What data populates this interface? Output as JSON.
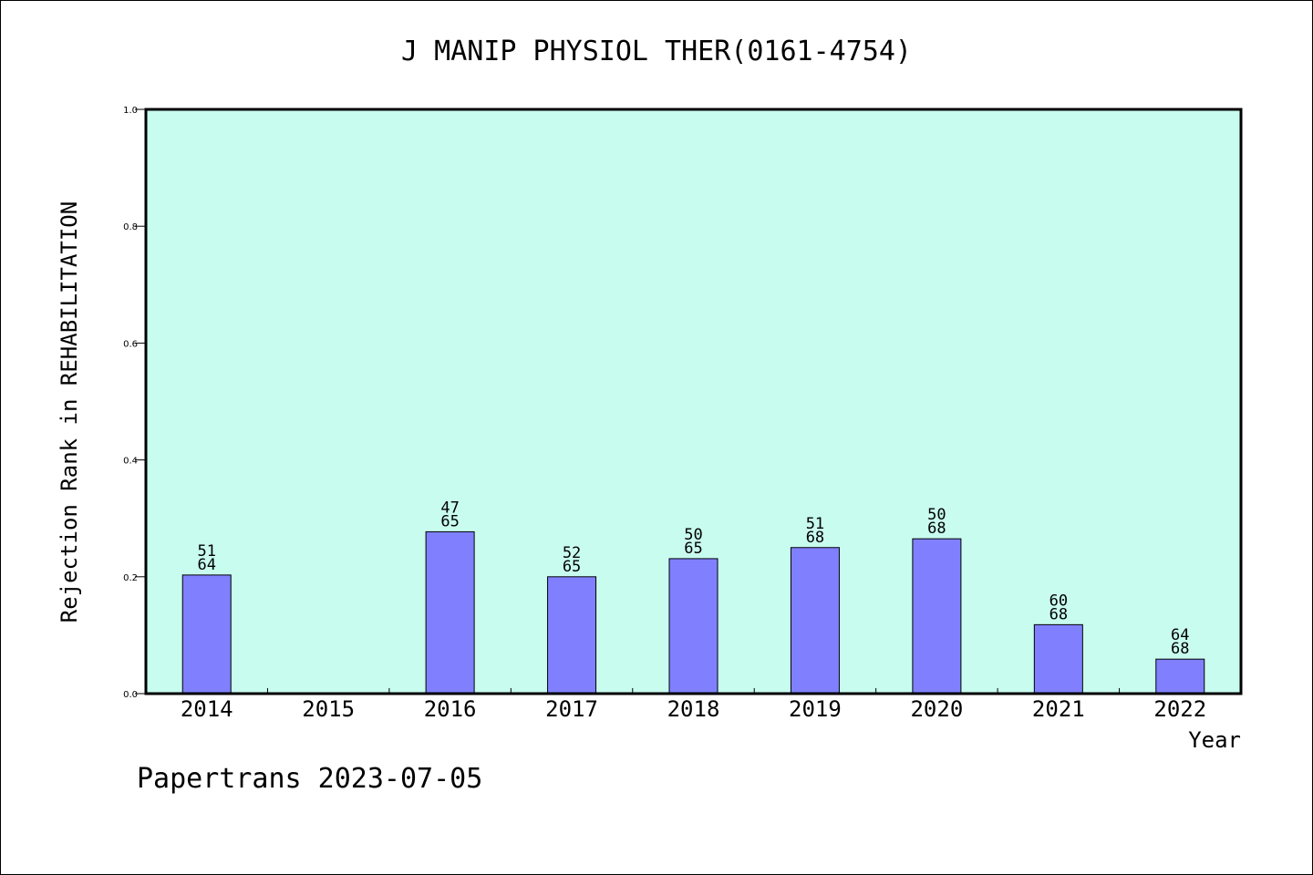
{
  "chart_data": {
    "type": "bar",
    "title": "J MANIP PHYSIOL THER(0161-4754)",
    "xlabel": "Year",
    "ylabel": "Rejection Rank in REHABILITATION",
    "ylim": [
      0,
      1.0
    ],
    "yticks": [
      "0.0",
      "0.2",
      "0.4",
      "0.6",
      "0.8",
      "1.0"
    ],
    "categories": [
      "2014",
      "2015",
      "2016",
      "2017",
      "2018",
      "2019",
      "2020",
      "2021",
      "2022"
    ],
    "values": [
      0.203,
      null,
      0.277,
      0.2,
      0.231,
      0.25,
      0.265,
      0.118,
      0.059
    ],
    "labels_top": [
      "51",
      "",
      "47",
      "52",
      "50",
      "51",
      "50",
      "60",
      "64"
    ],
    "labels_bottom": [
      "64",
      "",
      "65",
      "65",
      "65",
      "68",
      "68",
      "68",
      "68"
    ],
    "grid": false,
    "colors": {
      "plot_background": "#c8fcee",
      "bar_fill": "#8080ff",
      "bar_stroke": "#000000"
    }
  },
  "footer": {
    "watermark": "Papertrans 2023-07-05"
  }
}
